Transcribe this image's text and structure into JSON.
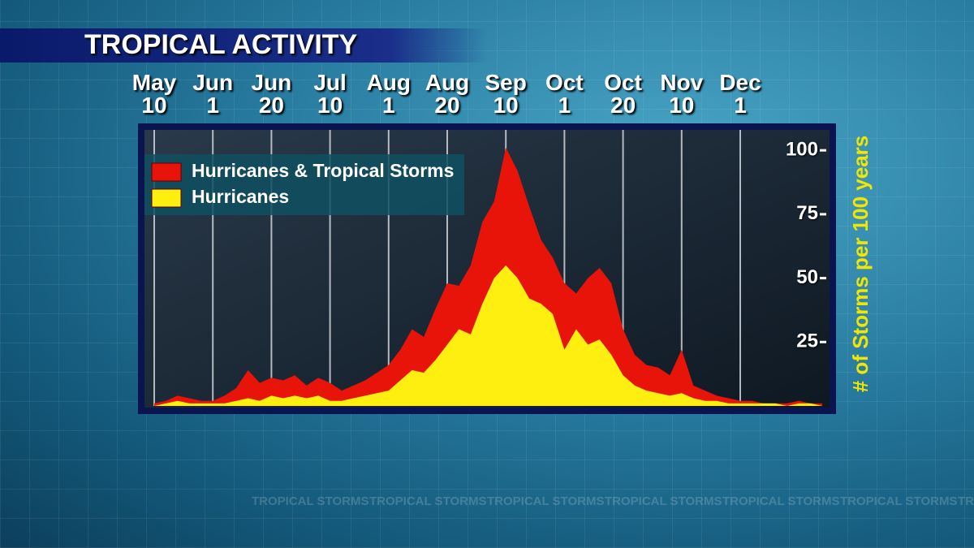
{
  "chart_data": {
    "type": "area",
    "title": "TROPICAL ACTIVITY",
    "y_label": "# of Storms per 100 years",
    "background_text": "TROPICAL STORMS",
    "categories": [
      "May 10",
      null,
      null,
      null,
      null,
      "Jun 1",
      null,
      null,
      null,
      null,
      "Jun 20",
      null,
      null,
      null,
      null,
      "Jul 10",
      null,
      null,
      null,
      null,
      "Aug 1",
      null,
      null,
      null,
      null,
      "Aug 20",
      null,
      null,
      null,
      null,
      "Sep 10",
      null,
      null,
      null,
      null,
      "Oct 1",
      null,
      null,
      null,
      null,
      "Oct 20",
      null,
      null,
      null,
      null,
      "Nov 10",
      null,
      null,
      null,
      null,
      "Dec 1",
      null,
      null,
      null,
      null,
      null,
      null,
      null
    ],
    "series": [
      {
        "name": "Hurricanes & Tropical Storms",
        "color": "#e8140a",
        "values": [
          1,
          2,
          4,
          3,
          2,
          2,
          4,
          7,
          14,
          9,
          11,
          10,
          12,
          8,
          11,
          9,
          6,
          8,
          10,
          13,
          16,
          22,
          30,
          27,
          38,
          48,
          47,
          55,
          72,
          80,
          101,
          92,
          78,
          65,
          58,
          48,
          44,
          50,
          54,
          48,
          30,
          20,
          16,
          15,
          12,
          22,
          8,
          6,
          4,
          3,
          2,
          2,
          1,
          1,
          1,
          2,
          1,
          1
        ]
      },
      {
        "name": "Hurricanes",
        "color": "#ffef10",
        "values": [
          0,
          1,
          2,
          1,
          1,
          1,
          1,
          2,
          3,
          2,
          4,
          3,
          4,
          3,
          4,
          2,
          2,
          3,
          4,
          5,
          6,
          10,
          14,
          13,
          18,
          24,
          30,
          28,
          40,
          50,
          55,
          50,
          42,
          40,
          36,
          22,
          30,
          24,
          26,
          20,
          12,
          8,
          6,
          5,
          4,
          5,
          3,
          2,
          2,
          1,
          1,
          1,
          1,
          1,
          0,
          1,
          1,
          0
        ]
      }
    ],
    "ylim": [
      0,
      108
    ],
    "yticks": [
      25,
      50,
      75,
      100
    ],
    "grid": true,
    "legend": "top-left"
  }
}
